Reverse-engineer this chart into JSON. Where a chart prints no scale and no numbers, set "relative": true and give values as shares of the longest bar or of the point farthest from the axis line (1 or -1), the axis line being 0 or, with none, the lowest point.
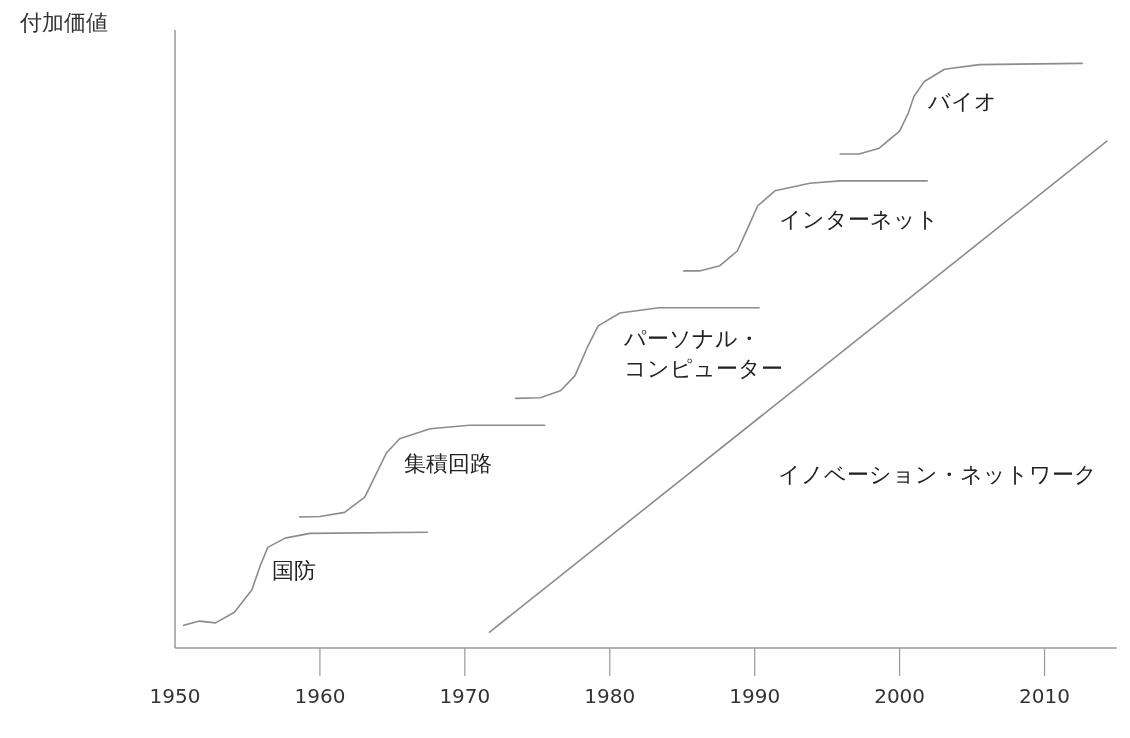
{
  "chart_data": {
    "type": "line",
    "relative": true,
    "ylabel": "付加価値",
    "xlim": [
      1950,
      2015
    ],
    "xticks": [
      1950,
      1960,
      1970,
      1980,
      1990,
      2000,
      2010
    ],
    "tick_labels": "x",
    "series": [
      {
        "name": "国防",
        "color": "#8c8c8c",
        "x": [
          1950.6,
          1951.7,
          1952.8,
          1954.1,
          1955.3,
          1955.9,
          1956.4,
          1957.6,
          1959.3,
          1967.4
        ],
        "values": [
          0.039,
          0.046,
          0.043,
          0.061,
          0.099,
          0.142,
          0.172,
          0.188,
          0.196,
          0.198
        ]
      },
      {
        "name": "集積回路",
        "color": "#8c8c8c",
        "x": [
          1958.6,
          1960.0,
          1961.7,
          1963.1,
          1964.0,
          1964.6,
          1965.5,
          1967.6,
          1970.3,
          1975.5
        ],
        "values": [
          0.224,
          0.225,
          0.232,
          0.258,
          0.304,
          0.334,
          0.358,
          0.375,
          0.381,
          0.381
        ]
      },
      {
        "name": "パーソナル・コンピューター",
        "color": "#8c8c8c",
        "x": [
          1973.5,
          1975.2,
          1976.6,
          1977.6,
          1978.5,
          1979.2,
          1980.7,
          1983.4,
          1990.3
        ],
        "values": [
          0.427,
          0.428,
          0.44,
          0.466,
          0.517,
          0.551,
          0.573,
          0.582,
          0.582
        ]
      },
      {
        "name": "インターネット",
        "color": "#8c8c8c",
        "x": [
          1985.1,
          1986.2,
          1987.6,
          1988.8,
          1989.5,
          1990.2,
          1991.4,
          1993.8,
          1995.9,
          2001.9
        ],
        "values": [
          0.645,
          0.645,
          0.654,
          0.679,
          0.717,
          0.756,
          0.782,
          0.795,
          0.799,
          0.799
        ]
      },
      {
        "name": "バイオ",
        "color": "#8c8c8c",
        "x": [
          1995.9,
          1997.2,
          1998.6,
          2000.0,
          2000.6,
          2001.0,
          2001.7,
          2003.1,
          2005.5,
          2012.6
        ],
        "values": [
          0.845,
          0.845,
          0.855,
          0.884,
          0.915,
          0.944,
          0.969,
          0.99,
          0.998,
          1
        ]
      },
      {
        "name": "イノベーション・ネットワーク",
        "color": "#8c8c8c",
        "x": [
          1971.7,
          2014.3
        ],
        "values": [
          0.027,
          0.867
        ]
      }
    ]
  }
}
